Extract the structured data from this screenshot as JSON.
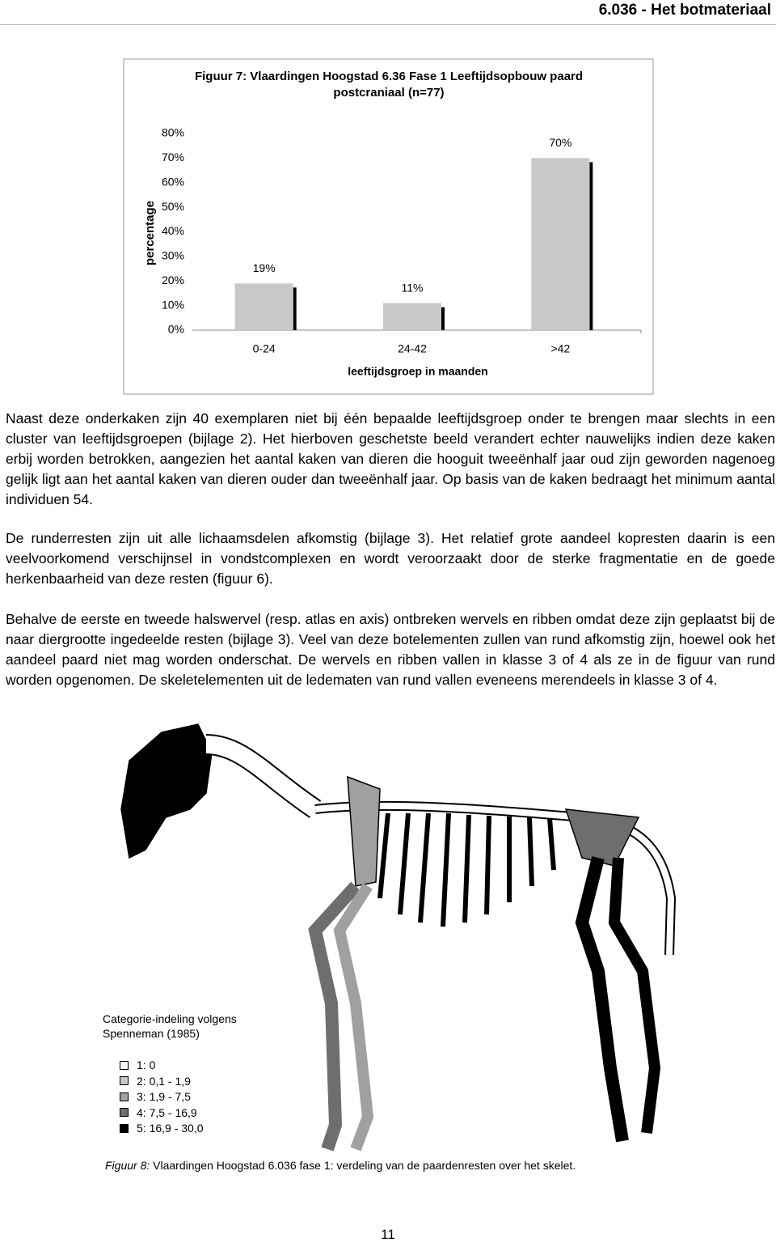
{
  "header": "6.036 - Het botmateriaal",
  "chart_data": {
    "type": "bar",
    "title": "Figuur 7: Vlaardingen Hoogstad 6.36 Fase 1 Leeftijdsopbouw paard postcraniaal (n=77)",
    "categories": [
      "0-24",
      "24-42",
      ">42"
    ],
    "values": [
      19,
      11,
      70
    ],
    "value_labels": [
      "19%",
      "11%",
      "70%"
    ],
    "color": "#c8c8c8",
    "ylim": [
      0,
      80
    ],
    "yticks": [
      {
        "value": 0,
        "label": "0%"
      },
      {
        "value": 10,
        "label": "10%"
      },
      {
        "value": 20,
        "label": "20%"
      },
      {
        "value": 30,
        "label": "30%"
      },
      {
        "value": 40,
        "label": "40%"
      },
      {
        "value": 50,
        "label": "50%"
      },
      {
        "value": 60,
        "label": "60%"
      },
      {
        "value": 70,
        "label": "70%"
      },
      {
        "value": 80,
        "label": "80%"
      }
    ],
    "y_label": "percentage",
    "x_label": "leeftijdsgroep in maanden"
  },
  "paragraphs": [
    "Naast deze onderkaken zijn 40 exemplaren niet bij één bepaalde leeftijdsgroep onder te brengen maar slechts in een cluster van leeftijdsgroepen (bijlage 2). Het hierboven geschetste beeld verandert echter nauwelijks indien deze kaken erbij worden betrokken, aangezien het aantal kaken van dieren die hoog­uit tweeënhalf jaar oud zijn geworden nagenoeg gelijk ligt aan het aantal kaken van dieren ouder dan tweeënhalf jaar. Op basis van de kaken bedraagt het minimum aantal individuen 54.",
    "De runderresten zijn uit alle lichaamsdelen afkomstig (bijlage 3). Het relatief grote aandeel kopresten daarin is een veelvoorkomend verschijnsel in vondstcomplexen en wordt veroorzaakt door de sterke frag­mentatie en de goede herkenbaarheid van deze resten (figuur 6).",
    "Behalve de eerste en tweede halswervel (resp. atlas en axis) ontbreken wervels en ribben omdat deze zijn geplaatst bij de naar diergrootte ingedeelde resten (bijlage 3). Veel van deze botelementen zullen van rund afkomstig zijn, hoewel ook het aandeel paard niet mag worden onderschat. De wervels en ribben vallen in klasse 3 of 4 als ze in de figuur van rund worden opgenomen. De skeletelementen uit de lede­maten van rund vallen eveneens merendeels in klasse 3 of 4."
  ],
  "figure": {
    "legend_title": "Categorie-indeling volgens Spenneman (1985)",
    "legend": [
      {
        "label": "1: 0",
        "color": "#ffffff"
      },
      {
        "label": "2: 0,1 - 1,9",
        "color": "#c8c8c8"
      },
      {
        "label": "3: 1,9 - 7,5",
        "color": "#a0a0a0"
      },
      {
        "label": "4: 7,5 - 16,9",
        "color": "#6e6e6e"
      },
      {
        "label": "5: 16,9 - 30,0",
        "color": "#000000"
      }
    ],
    "caption_label": "Figuur 8:",
    "caption_text": " Vlaardingen Hoogstad 6.036 fase 1: verdeling van de paardenresten over het skelet."
  },
  "page_number": "11"
}
